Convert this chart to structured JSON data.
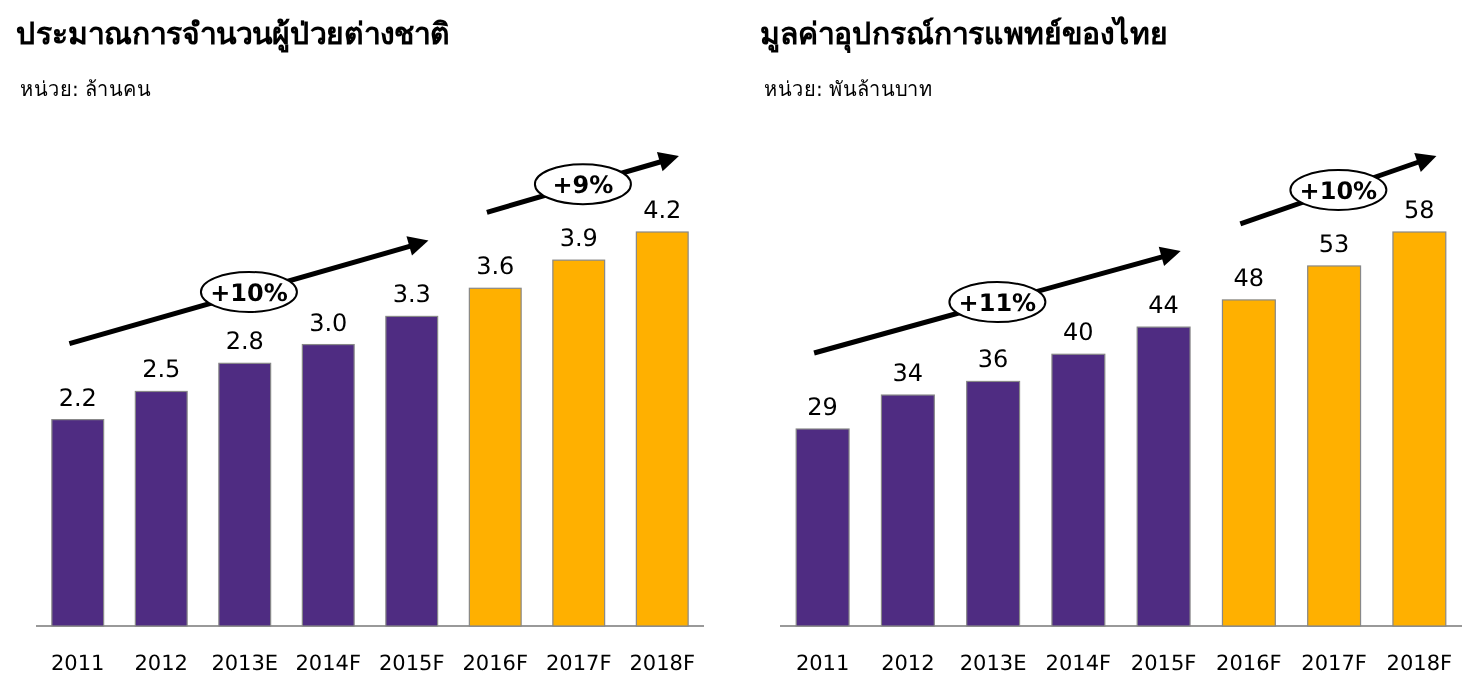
{
  "chart_data": [
    {
      "type": "bar",
      "title": "ประมาณการจำนวนผู้ป่วยต่างชาติ",
      "subtitle": "หน่วย: ล้านคน",
      "categories": [
        "2011",
        "2012",
        "2013E",
        "2014F",
        "2015F",
        "2016F",
        "2017F",
        "2018F"
      ],
      "values": [
        2.2,
        2.5,
        2.8,
        3.0,
        3.3,
        3.6,
        3.9,
        4.2
      ],
      "value_labels": [
        "2.2",
        "2.5",
        "2.8",
        "3.0",
        "3.3",
        "3.6",
        "3.9",
        "4.2"
      ],
      "colors": [
        "#4f2c82",
        "#4f2c82",
        "#4f2c82",
        "#4f2c82",
        "#4f2c82",
        "#ffb000",
        "#ffb000",
        "#ffb000"
      ],
      "annotations": [
        "+10%",
        "+9%"
      ]
    },
    {
      "type": "bar",
      "title": "มูลค่าอุปกรณ์การแพทย์ของไทย",
      "subtitle": "หน่วย: พันล้านบาท",
      "categories": [
        "2011",
        "2012",
        "2013E",
        "2014F",
        "2015F",
        "2016F",
        "2017F",
        "2018F"
      ],
      "values": [
        29,
        34,
        36,
        40,
        44,
        48,
        53,
        58
      ],
      "colors": [
        "#4f2c82",
        "#4f2c82",
        "#4f2c82",
        "#4f2c82",
        "#4f2c82",
        "#ffb000",
        "#ffb000",
        "#ffb000"
      ],
      "data_labels": true,
      "annotations": [
        "+11%",
        "+10%"
      ]
    }
  ]
}
